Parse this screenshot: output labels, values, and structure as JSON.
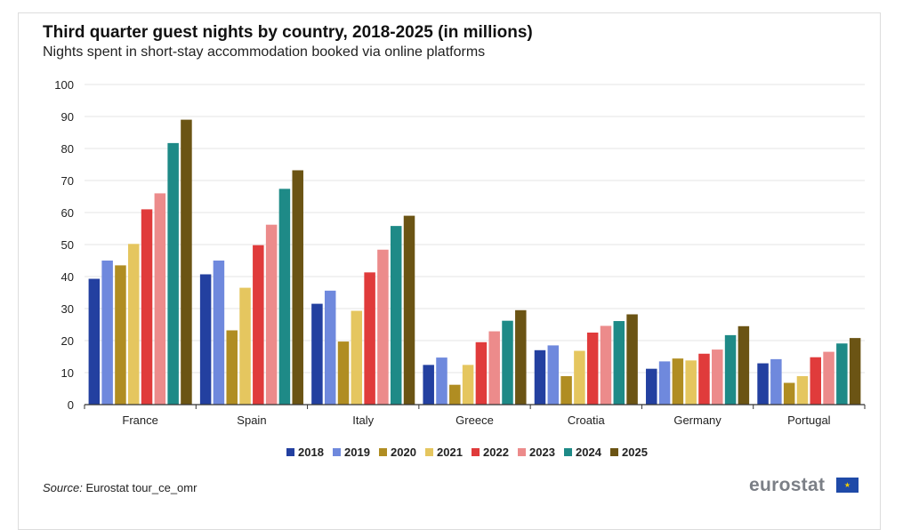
{
  "title": "Third quarter guest nights by country, 2018-2025 (in millions)",
  "subtitle": "Nights spent in short-stay accommodation booked via online platforms",
  "source_label": "Source:",
  "source_text": "Eurostat tour_ce_omr",
  "logo_text": "eurostat",
  "chart_data": {
    "type": "bar",
    "categories": [
      "France",
      "Spain",
      "Italy",
      "Greece",
      "Croatia",
      "Germany",
      "Portugal"
    ],
    "ylim": [
      0,
      100
    ],
    "yticks": [
      0,
      10,
      20,
      30,
      40,
      50,
      60,
      70,
      80,
      90,
      100
    ],
    "grid": true,
    "legend": "bottom",
    "series": [
      {
        "name": "2018",
        "color": "#2340a0",
        "values": [
          39.3,
          40.7,
          31.5,
          12.4,
          17.0,
          11.2,
          12.9
        ]
      },
      {
        "name": "2019",
        "color": "#6f89dd",
        "values": [
          45.0,
          45.0,
          35.6,
          14.7,
          18.5,
          13.5,
          14.2
        ]
      },
      {
        "name": "2020",
        "color": "#b08d22",
        "values": [
          43.5,
          23.2,
          19.7,
          6.2,
          8.9,
          14.4,
          6.8
        ]
      },
      {
        "name": "2021",
        "color": "#e5c65f",
        "values": [
          50.2,
          36.5,
          29.3,
          12.4,
          16.8,
          13.8,
          8.9
        ]
      },
      {
        "name": "2022",
        "color": "#e03b3b",
        "values": [
          61.0,
          49.8,
          41.3,
          19.5,
          22.5,
          15.9,
          14.8
        ]
      },
      {
        "name": "2023",
        "color": "#ec8b8b",
        "values": [
          66.0,
          56.2,
          48.4,
          22.9,
          24.6,
          17.2,
          16.5
        ]
      },
      {
        "name": "2024",
        "color": "#1e8a87",
        "values": [
          81.7,
          67.4,
          55.8,
          26.2,
          26.1,
          21.7,
          19.1
        ]
      },
      {
        "name": "2025",
        "color": "#6b5414",
        "values": [
          89.0,
          73.2,
          59.0,
          29.5,
          28.2,
          24.5,
          20.8
        ]
      }
    ]
  }
}
